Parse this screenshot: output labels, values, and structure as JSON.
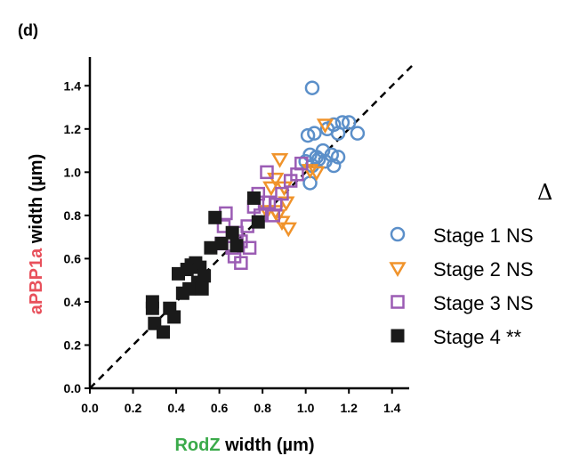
{
  "panel_label": "(d)",
  "delta_symbol": "Δ",
  "colors": {
    "stage1": "#5b8fc9",
    "stage2": "#f0932b",
    "stage3": "#9b5cb4",
    "stage4": "#1a1a1a",
    "x_title_accent": "#3aaa4a",
    "y_title_accent": "#e8505b"
  },
  "chart_data": {
    "type": "scatter",
    "xlabel_parts": [
      "RodZ",
      " width (µm)"
    ],
    "ylabel_parts": [
      "aPBP1a",
      " width (µm)"
    ],
    "xlim": [
      0.0,
      1.5
    ],
    "ylim": [
      0.0,
      1.5
    ],
    "xticks": [
      "0.0",
      "0.2",
      "0.4",
      "0.6",
      "0.8",
      "1.0",
      "1.2",
      "1.4"
    ],
    "yticks": [
      "0.0",
      "0.2",
      "0.4",
      "0.6",
      "0.8",
      "1.0",
      "1.2",
      "1.4"
    ],
    "reference_line": "y = x (dashed)",
    "legend_position": "right",
    "series": [
      {
        "name": "Stage 1 NS",
        "marker": "circle",
        "points": [
          [
            1.03,
            1.39
          ],
          [
            1.01,
            1.17
          ],
          [
            1.04,
            1.18
          ],
          [
            1.1,
            1.2
          ],
          [
            1.13,
            1.22
          ],
          [
            1.17,
            1.23
          ],
          [
            1.2,
            1.23
          ],
          [
            1.24,
            1.18
          ],
          [
            1.15,
            1.18
          ],
          [
            1.02,
            1.08
          ],
          [
            1.05,
            1.07
          ],
          [
            1.08,
            1.1
          ],
          [
            1.12,
            1.08
          ],
          [
            1.06,
            1.06
          ],
          [
            1.09,
            1.05
          ],
          [
            1.13,
            1.03
          ],
          [
            1.03,
            1.03
          ],
          [
            1.0,
            1.05
          ],
          [
            1.02,
            0.95
          ],
          [
            1.15,
            1.07
          ]
        ]
      },
      {
        "name": "Stage 2 NS",
        "marker": "triangle-down",
        "points": [
          [
            1.09,
            1.22
          ],
          [
            0.88,
            1.06
          ],
          [
            0.86,
            0.97
          ],
          [
            0.9,
            0.93
          ],
          [
            0.84,
            0.93
          ],
          [
            0.91,
            0.86
          ],
          [
            0.86,
            0.82
          ],
          [
            0.82,
            0.82
          ],
          [
            0.87,
            0.8
          ],
          [
            0.92,
            0.74
          ],
          [
            0.89,
            0.77
          ],
          [
            1.05,
            1.0
          ],
          [
            1.02,
            1.01
          ]
        ]
      },
      {
        "name": "Stage 3 NS",
        "marker": "square",
        "points": [
          [
            0.82,
            1.0
          ],
          [
            0.98,
            1.04
          ],
          [
            0.93,
            0.96
          ],
          [
            0.89,
            0.9
          ],
          [
            0.83,
            0.86
          ],
          [
            0.85,
            0.8
          ],
          [
            0.79,
            0.8
          ],
          [
            0.76,
            0.84
          ],
          [
            0.78,
            0.9
          ],
          [
            0.73,
            0.75
          ],
          [
            0.68,
            0.72
          ],
          [
            0.7,
            0.68
          ],
          [
            0.66,
            0.65
          ],
          [
            0.74,
            0.65
          ],
          [
            0.61,
            0.67
          ],
          [
            0.62,
            0.75
          ],
          [
            0.63,
            0.81
          ],
          [
            0.67,
            0.61
          ],
          [
            0.7,
            0.58
          ],
          [
            0.96,
            0.99
          ],
          [
            0.81,
            0.86
          ],
          [
            0.86,
            0.85
          ]
        ]
      },
      {
        "name": "Stage 4 **",
        "marker": "filled-square",
        "points": [
          [
            0.76,
            0.88
          ],
          [
            0.58,
            0.79
          ],
          [
            0.78,
            0.77
          ],
          [
            0.56,
            0.65
          ],
          [
            0.61,
            0.67
          ],
          [
            0.66,
            0.72
          ],
          [
            0.68,
            0.66
          ],
          [
            0.47,
            0.57
          ],
          [
            0.51,
            0.56
          ],
          [
            0.49,
            0.58
          ],
          [
            0.45,
            0.55
          ],
          [
            0.53,
            0.52
          ],
          [
            0.41,
            0.53
          ],
          [
            0.5,
            0.49
          ],
          [
            0.46,
            0.46
          ],
          [
            0.52,
            0.46
          ],
          [
            0.43,
            0.44
          ],
          [
            0.29,
            0.4
          ],
          [
            0.29,
            0.37
          ],
          [
            0.37,
            0.37
          ],
          [
            0.39,
            0.33
          ],
          [
            0.3,
            0.3
          ],
          [
            0.34,
            0.26
          ]
        ]
      }
    ]
  }
}
